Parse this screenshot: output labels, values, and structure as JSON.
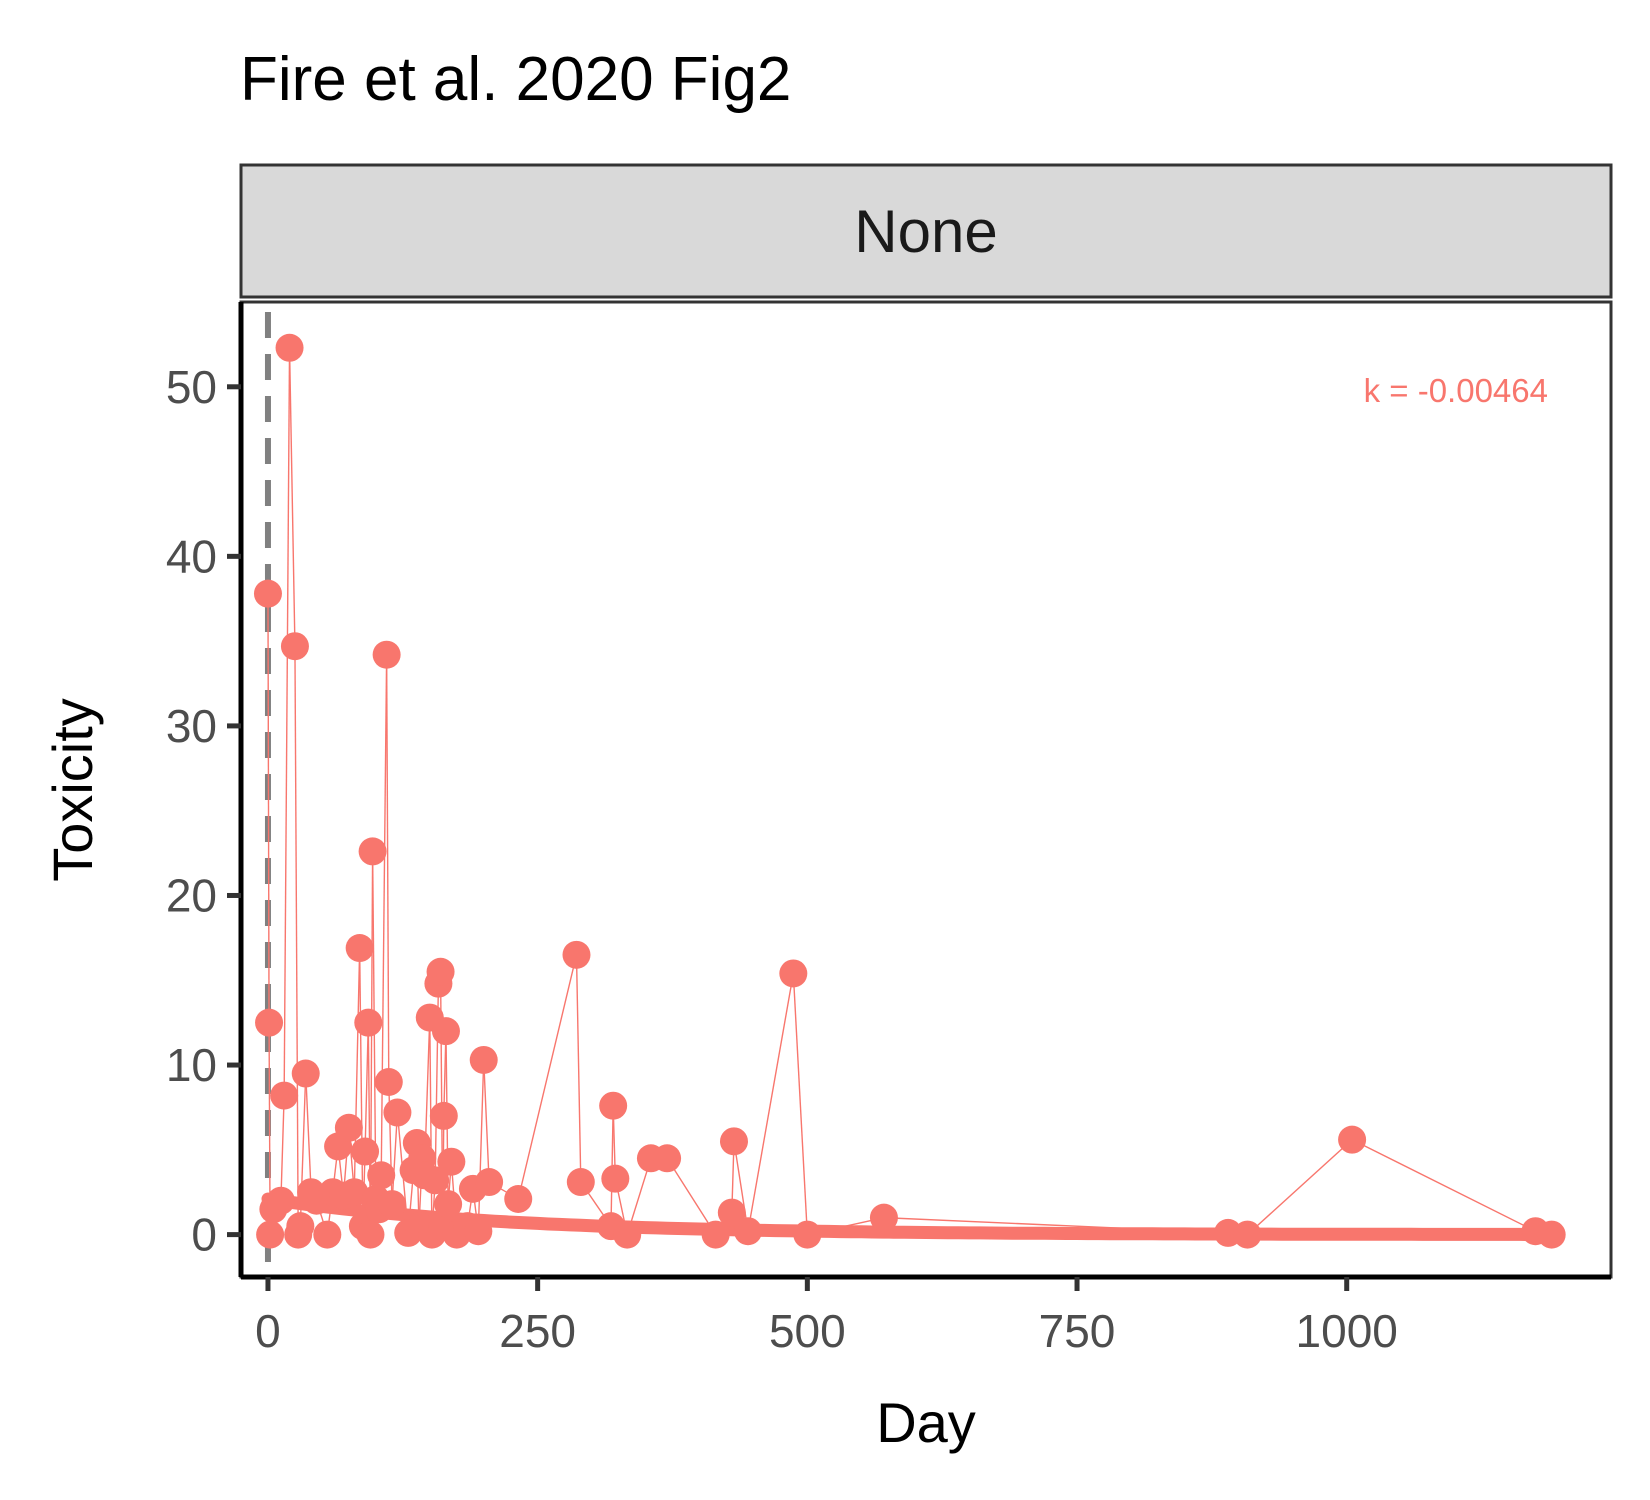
{
  "chart_data": {
    "type": "scatter",
    "title": "Fire et al. 2020 Fig2",
    "facet": "None",
    "xlabel": "Day",
    "ylabel": "Toxicity",
    "xlim": [
      -25,
      1245
    ],
    "ylim": [
      -2.5,
      55
    ],
    "x_ticks": [
      0,
      250,
      500,
      750,
      1000
    ],
    "y_ticks": [
      0,
      10,
      20,
      30,
      40,
      50
    ],
    "vline_x": 0,
    "annotation": "k = -0.00464",
    "k": -0.00464,
    "fit_start_value": 2.1,
    "grid": false,
    "color": "#F8766D",
    "series": [
      {
        "x": [
          0,
          1,
          2,
          5,
          12,
          15,
          20,
          25,
          28,
          30,
          35,
          40,
          45,
          55,
          60,
          65,
          70,
          75,
          80,
          85,
          88,
          90,
          93,
          95,
          97,
          100,
          103,
          105,
          110,
          112,
          115,
          120,
          130,
          135,
          138,
          140,
          143,
          145,
          150,
          152,
          155,
          158,
          160,
          162,
          163,
          165,
          167,
          170,
          175,
          185,
          190,
          195,
          200,
          205,
          232,
          286,
          290,
          318,
          320,
          322,
          333,
          355,
          370,
          415,
          430,
          432,
          445,
          487,
          500,
          571,
          890,
          908,
          1005,
          1175,
          1190
        ],
        "y": [
          37.8,
          12.5,
          0,
          1.5,
          2.0,
          8.2,
          52.3,
          34.7,
          0,
          0.5,
          9.5,
          2.5,
          2.0,
          0,
          2.5,
          5.2,
          2.3,
          6.3,
          2.5,
          16.9,
          0.5,
          4.9,
          12.5,
          0,
          22.6,
          2.1,
          1.5,
          3.5,
          34.2,
          9.0,
          1.8,
          7.2,
          0.1,
          3.8,
          5.4,
          0.5,
          4.5,
          3.5,
          12.8,
          0,
          3.2,
          14.8,
          15.5,
          0.5,
          7.0,
          12.0,
          1.8,
          4.3,
          0,
          0.5,
          2.7,
          0.2,
          10.3,
          3.1,
          2.1,
          16.5,
          3.1,
          0.5,
          7.6,
          3.3,
          0,
          4.5,
          4.5,
          0,
          1.3,
          5.5,
          0.2,
          15.4,
          0,
          1.0,
          0.1,
          0,
          5.6,
          0.2,
          0
        ]
      }
    ]
  }
}
